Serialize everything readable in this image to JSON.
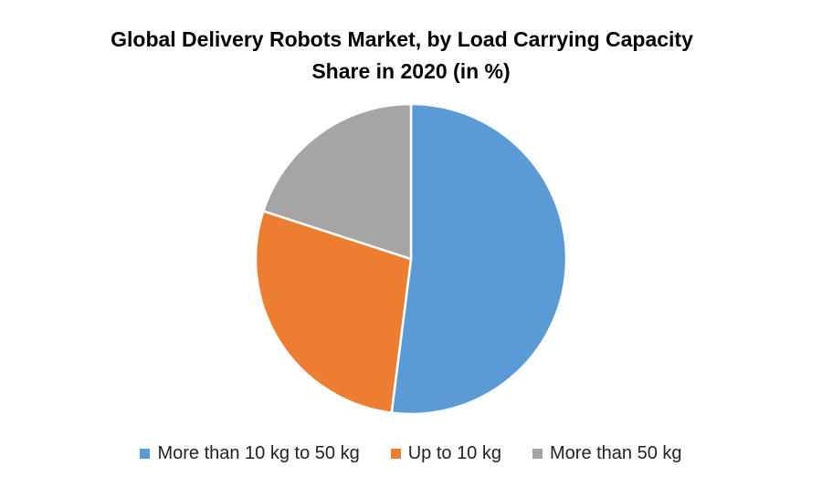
{
  "chart_data": {
    "type": "pie",
    "title": "Global Delivery Robots Market, by Load Carrying Capacity",
    "subtitle": "Share in 2020 (in %)",
    "categories": [
      "More than 10 kg to 50 kg",
      "Up to 10 kg",
      "More than 50 kg"
    ],
    "values": [
      52,
      28,
      20
    ],
    "colors": [
      "#5b9bd5",
      "#ed7d31",
      "#a5a5a5"
    ],
    "start_angle_deg": 0,
    "direction": "clockwise",
    "legend_position": "bottom"
  }
}
